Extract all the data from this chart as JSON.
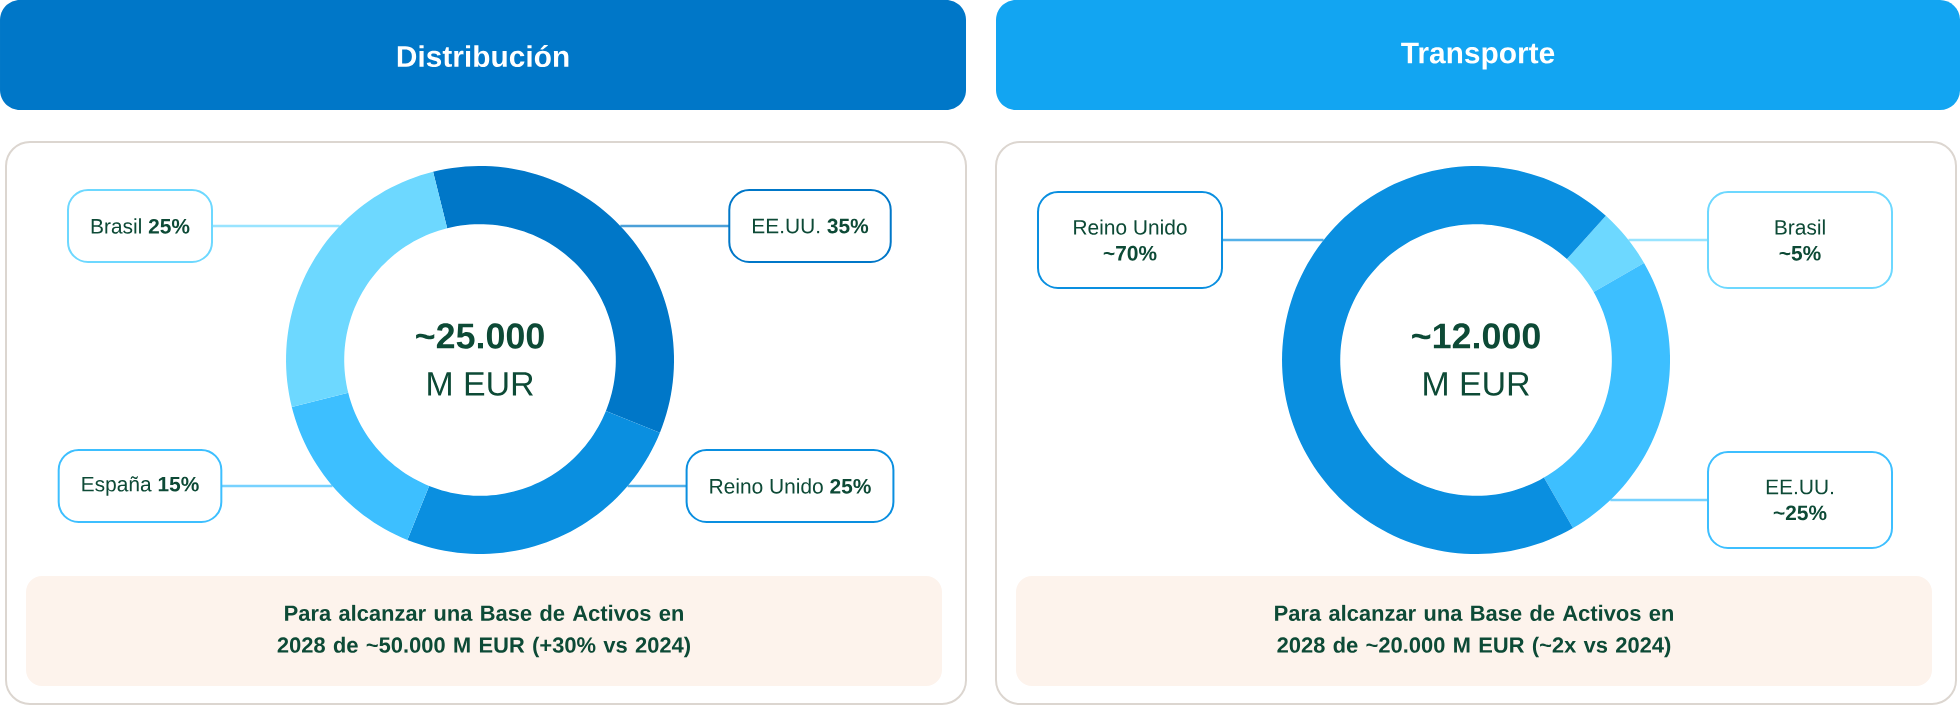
{
  "chart_data": [
    {
      "type": "donut",
      "title": "Distribución",
      "categories": [
        "EE.UU.",
        "Reino Unido",
        "España",
        "Brasil"
      ],
      "values": [
        35,
        25,
        15,
        25
      ],
      "colors": [
        "#0077c8",
        "#0a8fe0",
        "#3dbfff",
        "#6dd8ff"
      ],
      "value_labels": [
        "35%",
        "25%",
        "15%",
        "25%"
      ],
      "annotations": [
        "~25.000",
        "M EUR",
        "Para alcanzar una Base de Activos en 2028 de ~50.000 M EUR (+30% vs 2024)"
      ]
    },
    {
      "type": "donut",
      "title": "Transporte",
      "categories": [
        "Brasil",
        "EE.UU.",
        "Reino Unido"
      ],
      "values": [
        5,
        25,
        70
      ],
      "colors": [
        "#6dd8ff",
        "#3dbfff",
        "#0a8fe0"
      ],
      "value_labels": [
        "~5%",
        "~25%",
        "~70%"
      ],
      "annotations": [
        "~12.000",
        "M EUR",
        "Para alcanzar una Base de Activos en 2028 de ~20.000 M EUR (~2x vs 2024)"
      ]
    }
  ]
}
